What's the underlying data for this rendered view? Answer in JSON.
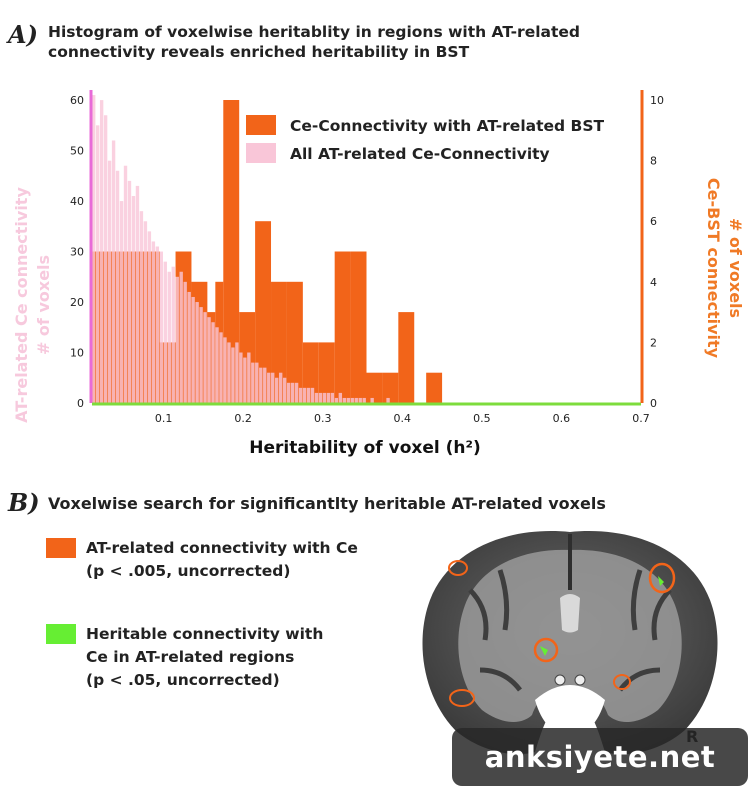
{
  "panel_a": {
    "letter": "A)",
    "title_line1": "Histogram of voxelwise heritablity in regions with AT-related",
    "title_line2": "connectivity reveals enriched heritability in BST"
  },
  "chart_data": {
    "type": "bar",
    "xlabel": "Heritability of voxel (h²)",
    "ylabel_left": [
      "AT-related Ce connectivity",
      "# of voxels"
    ],
    "ylabel_right": [
      "Ce-BST connectivity",
      "# of voxels"
    ],
    "xlim": [
      0.01,
      0.7
    ],
    "ylim_left": [
      0,
      62
    ],
    "ylim_right": [
      0,
      10.33
    ],
    "xticks": [
      0.1,
      0.2,
      0.3,
      0.4,
      0.5,
      0.6,
      0.7
    ],
    "xtick_labels": [
      "0.1",
      "0.2",
      "0.3",
      "0.4",
      "0.5",
      "0.6",
      "0.7"
    ],
    "yticks_left": [
      0,
      10,
      20,
      30,
      40,
      50,
      60
    ],
    "ytick_labels_left": [
      "0",
      "10",
      "20",
      "30",
      "40",
      "50",
      "60"
    ],
    "yticks_right": [
      0,
      2,
      4,
      6,
      8,
      10
    ],
    "ytick_labels_right": [
      "0",
      "2",
      "4",
      "6",
      "8",
      "10"
    ],
    "legend_position": "top-right",
    "series": [
      {
        "name": "Ce-Connectivity with AT-related BST",
        "axis": "right",
        "color": "#f26419",
        "bins": [
          {
            "x0": 0.01,
            "x1": 0.045,
            "value": 5
          },
          {
            "x0": 0.045,
            "x1": 0.095,
            "value": 5
          },
          {
            "x0": 0.095,
            "x1": 0.115,
            "value": 2
          },
          {
            "x0": 0.115,
            "x1": 0.135,
            "value": 5
          },
          {
            "x0": 0.135,
            "x1": 0.155,
            "value": 4
          },
          {
            "x0": 0.155,
            "x1": 0.165,
            "value": 3
          },
          {
            "x0": 0.165,
            "x1": 0.175,
            "value": 4
          },
          {
            "x0": 0.175,
            "x1": 0.195,
            "value": 10
          },
          {
            "x0": 0.195,
            "x1": 0.215,
            "value": 3
          },
          {
            "x0": 0.215,
            "x1": 0.235,
            "value": 6
          },
          {
            "x0": 0.235,
            "x1": 0.255,
            "value": 4
          },
          {
            "x0": 0.255,
            "x1": 0.275,
            "value": 4
          },
          {
            "x0": 0.275,
            "x1": 0.295,
            "value": 2
          },
          {
            "x0": 0.295,
            "x1": 0.315,
            "value": 2
          },
          {
            "x0": 0.315,
            "x1": 0.335,
            "value": 5
          },
          {
            "x0": 0.335,
            "x1": 0.355,
            "value": 5
          },
          {
            "x0": 0.355,
            "x1": 0.375,
            "value": 1
          },
          {
            "x0": 0.375,
            "x1": 0.395,
            "value": 1
          },
          {
            "x0": 0.395,
            "x1": 0.415,
            "value": 3
          },
          {
            "x0": 0.43,
            "x1": 0.45,
            "value": 1
          }
        ]
      },
      {
        "name": "All AT-related Ce-Connectivity",
        "axis": "left",
        "color": "#f9c6d8",
        "bins": [
          {
            "x0": 0.01,
            "x1": 0.015,
            "value": 61
          },
          {
            "x0": 0.015,
            "x1": 0.02,
            "value": 55
          },
          {
            "x0": 0.02,
            "x1": 0.025,
            "value": 60
          },
          {
            "x0": 0.025,
            "x1": 0.03,
            "value": 57
          },
          {
            "x0": 0.03,
            "x1": 0.035,
            "value": 48
          },
          {
            "x0": 0.035,
            "x1": 0.04,
            "value": 52
          },
          {
            "x0": 0.04,
            "x1": 0.045,
            "value": 46
          },
          {
            "x0": 0.045,
            "x1": 0.05,
            "value": 40
          },
          {
            "x0": 0.05,
            "x1": 0.055,
            "value": 47
          },
          {
            "x0": 0.055,
            "x1": 0.06,
            "value": 44
          },
          {
            "x0": 0.06,
            "x1": 0.065,
            "value": 41
          },
          {
            "x0": 0.065,
            "x1": 0.07,
            "value": 43
          },
          {
            "x0": 0.07,
            "x1": 0.075,
            "value": 38
          },
          {
            "x0": 0.075,
            "x1": 0.08,
            "value": 36
          },
          {
            "x0": 0.08,
            "x1": 0.085,
            "value": 34
          },
          {
            "x0": 0.085,
            "x1": 0.09,
            "value": 32
          },
          {
            "x0": 0.09,
            "x1": 0.095,
            "value": 31
          },
          {
            "x0": 0.095,
            "x1": 0.1,
            "value": 30
          },
          {
            "x0": 0.1,
            "x1": 0.105,
            "value": 28
          },
          {
            "x0": 0.105,
            "x1": 0.11,
            "value": 26
          },
          {
            "x0": 0.11,
            "x1": 0.115,
            "value": 27
          },
          {
            "x0": 0.115,
            "x1": 0.12,
            "value": 25
          },
          {
            "x0": 0.12,
            "x1": 0.125,
            "value": 26
          },
          {
            "x0": 0.125,
            "x1": 0.13,
            "value": 24
          },
          {
            "x0": 0.13,
            "x1": 0.135,
            "value": 22
          },
          {
            "x0": 0.135,
            "x1": 0.14,
            "value": 21
          },
          {
            "x0": 0.14,
            "x1": 0.145,
            "value": 20
          },
          {
            "x0": 0.145,
            "x1": 0.15,
            "value": 19
          },
          {
            "x0": 0.15,
            "x1": 0.155,
            "value": 18
          },
          {
            "x0": 0.155,
            "x1": 0.16,
            "value": 17
          },
          {
            "x0": 0.16,
            "x1": 0.165,
            "value": 16
          },
          {
            "x0": 0.165,
            "x1": 0.17,
            "value": 15
          },
          {
            "x0": 0.17,
            "x1": 0.175,
            "value": 14
          },
          {
            "x0": 0.175,
            "x1": 0.18,
            "value": 13
          },
          {
            "x0": 0.18,
            "x1": 0.185,
            "value": 12
          },
          {
            "x0": 0.185,
            "x1": 0.19,
            "value": 11
          },
          {
            "x0": 0.19,
            "x1": 0.195,
            "value": 12
          },
          {
            "x0": 0.195,
            "x1": 0.2,
            "value": 10
          },
          {
            "x0": 0.2,
            "x1": 0.205,
            "value": 9
          },
          {
            "x0": 0.205,
            "x1": 0.21,
            "value": 10
          },
          {
            "x0": 0.21,
            "x1": 0.215,
            "value": 8
          },
          {
            "x0": 0.215,
            "x1": 0.22,
            "value": 8
          },
          {
            "x0": 0.22,
            "x1": 0.225,
            "value": 7
          },
          {
            "x0": 0.225,
            "x1": 0.23,
            "value": 7
          },
          {
            "x0": 0.23,
            "x1": 0.235,
            "value": 6
          },
          {
            "x0": 0.235,
            "x1": 0.24,
            "value": 6
          },
          {
            "x0": 0.24,
            "x1": 0.245,
            "value": 5
          },
          {
            "x0": 0.245,
            "x1": 0.25,
            "value": 6
          },
          {
            "x0": 0.25,
            "x1": 0.255,
            "value": 5
          },
          {
            "x0": 0.255,
            "x1": 0.26,
            "value": 4
          },
          {
            "x0": 0.26,
            "x1": 0.265,
            "value": 4
          },
          {
            "x0": 0.265,
            "x1": 0.27,
            "value": 4
          },
          {
            "x0": 0.27,
            "x1": 0.275,
            "value": 3
          },
          {
            "x0": 0.275,
            "x1": 0.28,
            "value": 3
          },
          {
            "x0": 0.28,
            "x1": 0.285,
            "value": 3
          },
          {
            "x0": 0.285,
            "x1": 0.29,
            "value": 3
          },
          {
            "x0": 0.29,
            "x1": 0.295,
            "value": 2
          },
          {
            "x0": 0.295,
            "x1": 0.3,
            "value": 2
          },
          {
            "x0": 0.3,
            "x1": 0.305,
            "value": 2
          },
          {
            "x0": 0.305,
            "x1": 0.31,
            "value": 2
          },
          {
            "x0": 0.31,
            "x1": 0.315,
            "value": 2
          },
          {
            "x0": 0.315,
            "x1": 0.32,
            "value": 1
          },
          {
            "x0": 0.32,
            "x1": 0.325,
            "value": 2
          },
          {
            "x0": 0.325,
            "x1": 0.33,
            "value": 1
          },
          {
            "x0": 0.33,
            "x1": 0.335,
            "value": 1
          },
          {
            "x0": 0.335,
            "x1": 0.34,
            "value": 1
          },
          {
            "x0": 0.34,
            "x1": 0.345,
            "value": 1
          },
          {
            "x0": 0.345,
            "x1": 0.35,
            "value": 1
          },
          {
            "x0": 0.35,
            "x1": 0.355,
            "value": 1
          },
          {
            "x0": 0.36,
            "x1": 0.365,
            "value": 1
          },
          {
            "x0": 0.38,
            "x1": 0.385,
            "value": 1
          }
        ]
      }
    ]
  },
  "panel_b": {
    "letter": "B)",
    "title": "Voxelwise search for significantlty heritable AT-related voxels",
    "legend": [
      {
        "color": "#f26419",
        "line1": "AT-related connectivity with Ce",
        "line2": "(p < .005, uncorrected)"
      },
      {
        "color": "#66ee33",
        "line1": "Heritable connectivity with",
        "line2": "Ce in AT-related regions",
        "line3": "(p < .05, uncorrected)"
      }
    ],
    "side_label": "R"
  },
  "watermark": "anksiyete.net",
  "colors": {
    "at_related": "#f26419",
    "all_at": "#f9c6d8",
    "heritable": "#66ee33",
    "left_axis_line": "#e86bd8",
    "x_axis_line": "#7ddc3c"
  }
}
